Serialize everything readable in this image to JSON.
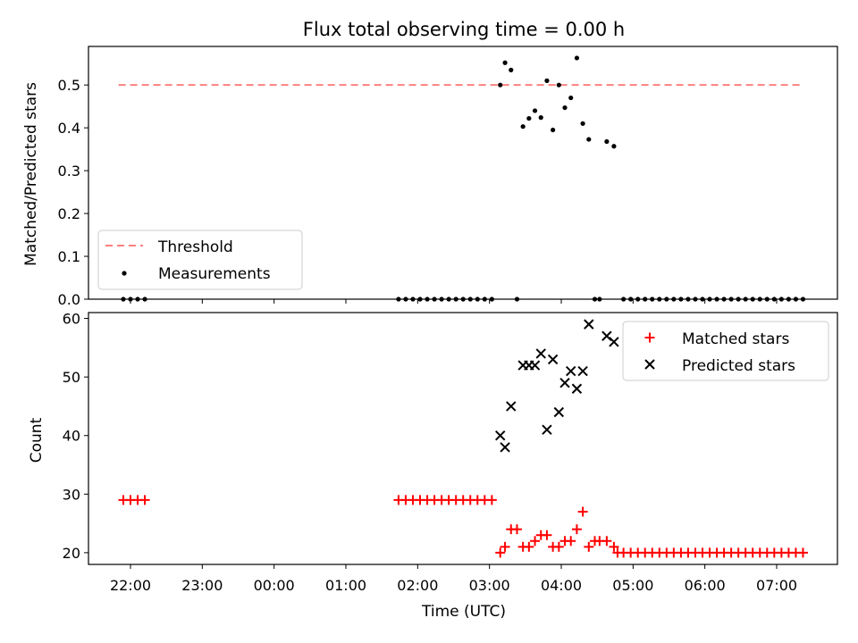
{
  "chart_data": {
    "title": "Flux total observing time = 0.00 h",
    "xlabel": "Time (UTC)",
    "x_ticks": [
      "22:00",
      "23:00",
      "00:00",
      "01:00",
      "02:00",
      "03:00",
      "04:00",
      "05:00",
      "06:00",
      "07:00"
    ],
    "panels": [
      {
        "type": "line+scatter",
        "ylabel": "Matched/Predicted stars",
        "ylim": [
          0,
          0.59
        ],
        "y_ticks": [
          "0.0",
          "0.1",
          "0.2",
          "0.3",
          "0.4",
          "0.5"
        ],
        "threshold": {
          "name": "Threshold",
          "value": 0.5,
          "color": "#ff8080",
          "x_range": [
            "21:50",
            "07:20"
          ]
        },
        "measurements": {
          "name": "Measurements",
          "color": "#000000",
          "points": [
            [
              "21:54",
              0
            ],
            [
              "22:00",
              0
            ],
            [
              "22:06",
              0
            ],
            [
              "22:12",
              0
            ],
            [
              "01:44",
              0
            ],
            [
              "01:50",
              0
            ],
            [
              "01:56",
              0
            ],
            [
              "02:02",
              0
            ],
            [
              "02:08",
              0
            ],
            [
              "02:14",
              0
            ],
            [
              "02:20",
              0
            ],
            [
              "02:26",
              0
            ],
            [
              "02:32",
              0
            ],
            [
              "02:38",
              0
            ],
            [
              "02:44",
              0
            ],
            [
              "02:50",
              0
            ],
            [
              "02:56",
              0
            ],
            [
              "03:02",
              0
            ],
            [
              "03:09",
              0.5
            ],
            [
              "03:13",
              0.552
            ],
            [
              "03:18",
              0.535
            ],
            [
              "03:23",
              0.0
            ],
            [
              "03:28",
              0.403
            ],
            [
              "03:33",
              0.422
            ],
            [
              "03:38",
              0.44
            ],
            [
              "03:43",
              0.424
            ],
            [
              "03:48",
              0.51
            ],
            [
              "03:53",
              0.395
            ],
            [
              "03:58",
              0.5
            ],
            [
              "04:03",
              0.447
            ],
            [
              "04:08",
              0.47
            ],
            [
              "04:13",
              0.563
            ],
            [
              "04:18",
              0.41
            ],
            [
              "04:23",
              0.373
            ],
            [
              "04:28",
              0.0
            ],
            [
              "04:32",
              0.0
            ],
            [
              "04:38",
              0.368
            ],
            [
              "04:44",
              0.357
            ],
            [
              "04:52",
              0
            ],
            [
              "04:58",
              0
            ],
            [
              "05:04",
              0
            ],
            [
              "05:10",
              0
            ],
            [
              "05:16",
              0
            ],
            [
              "05:22",
              0
            ],
            [
              "05:28",
              0
            ],
            [
              "05:34",
              0
            ],
            [
              "05:40",
              0
            ],
            [
              "05:46",
              0
            ],
            [
              "05:52",
              0
            ],
            [
              "05:58",
              0
            ],
            [
              "06:04",
              0
            ],
            [
              "06:10",
              0
            ],
            [
              "06:16",
              0
            ],
            [
              "06:22",
              0
            ],
            [
              "06:28",
              0
            ],
            [
              "06:34",
              0
            ],
            [
              "06:40",
              0
            ],
            [
              "06:46",
              0
            ],
            [
              "06:52",
              0
            ],
            [
              "06:58",
              0
            ],
            [
              "07:04",
              0
            ],
            [
              "07:10",
              0
            ],
            [
              "07:16",
              0
            ],
            [
              "07:22",
              0
            ]
          ]
        },
        "legend": {
          "placement": "lower-left",
          "entries": [
            "Threshold",
            "Measurements"
          ]
        }
      },
      {
        "type": "scatter",
        "ylabel": "Count",
        "ylim": [
          18,
          61
        ],
        "y_ticks": [
          "20",
          "30",
          "40",
          "50",
          "60"
        ],
        "series": [
          {
            "name": "Matched stars",
            "marker": "+",
            "color": "#ff0000",
            "points": [
              [
                "21:54",
                29
              ],
              [
                "22:00",
                29
              ],
              [
                "22:06",
                29
              ],
              [
                "22:12",
                29
              ],
              [
                "01:44",
                29
              ],
              [
                "01:50",
                29
              ],
              [
                "01:56",
                29
              ],
              [
                "02:02",
                29
              ],
              [
                "02:08",
                29
              ],
              [
                "02:14",
                29
              ],
              [
                "02:20",
                29
              ],
              [
                "02:26",
                29
              ],
              [
                "02:32",
                29
              ],
              [
                "02:38",
                29
              ],
              [
                "02:44",
                29
              ],
              [
                "02:50",
                29
              ],
              [
                "02:56",
                29
              ],
              [
                "03:02",
                29
              ],
              [
                "03:09",
                20
              ],
              [
                "03:13",
                21
              ],
              [
                "03:18",
                24
              ],
              [
                "03:23",
                24
              ],
              [
                "03:28",
                21
              ],
              [
                "03:33",
                21
              ],
              [
                "03:38",
                22
              ],
              [
                "03:43",
                23
              ],
              [
                "03:48",
                23
              ],
              [
                "03:53",
                21
              ],
              [
                "03:58",
                21
              ],
              [
                "04:03",
                22
              ],
              [
                "04:08",
                22
              ],
              [
                "04:13",
                24
              ],
              [
                "04:18",
                27
              ],
              [
                "04:23",
                21
              ],
              [
                "04:28",
                22
              ],
              [
                "04:32",
                22
              ],
              [
                "04:38",
                22
              ],
              [
                "04:44",
                21
              ],
              [
                "04:47",
                20
              ],
              [
                "04:52",
                20
              ],
              [
                "04:58",
                20
              ],
              [
                "05:04",
                20
              ],
              [
                "05:10",
                20
              ],
              [
                "05:16",
                20
              ],
              [
                "05:22",
                20
              ],
              [
                "05:28",
                20
              ],
              [
                "05:34",
                20
              ],
              [
                "05:40",
                20
              ],
              [
                "05:46",
                20
              ],
              [
                "05:52",
                20
              ],
              [
                "05:58",
                20
              ],
              [
                "06:04",
                20
              ],
              [
                "06:10",
                20
              ],
              [
                "06:16",
                20
              ],
              [
                "06:22",
                20
              ],
              [
                "06:28",
                20
              ],
              [
                "06:34",
                20
              ],
              [
                "06:40",
                20
              ],
              [
                "06:46",
                20
              ],
              [
                "06:52",
                20
              ],
              [
                "06:58",
                20
              ],
              [
                "07:04",
                20
              ],
              [
                "07:10",
                20
              ],
              [
                "07:16",
                20
              ],
              [
                "07:22",
                20
              ]
            ]
          },
          {
            "name": "Predicted stars",
            "marker": "x",
            "color": "#000000",
            "points": [
              [
                "03:09",
                40
              ],
              [
                "03:13",
                38
              ],
              [
                "03:18",
                45
              ],
              [
                "03:28",
                52
              ],
              [
                "03:33",
                52
              ],
              [
                "03:38",
                52
              ],
              [
                "03:43",
                54
              ],
              [
                "03:48",
                41
              ],
              [
                "03:53",
                53
              ],
              [
                "03:58",
                44
              ],
              [
                "04:03",
                49
              ],
              [
                "04:08",
                51
              ],
              [
                "04:13",
                48
              ],
              [
                "04:18",
                51
              ],
              [
                "04:23",
                59
              ],
              [
                "04:38",
                57
              ],
              [
                "04:44",
                56
              ]
            ]
          }
        ],
        "legend": {
          "placement": "top-right",
          "entries": [
            "Matched stars",
            "Predicted stars"
          ]
        }
      }
    ]
  }
}
